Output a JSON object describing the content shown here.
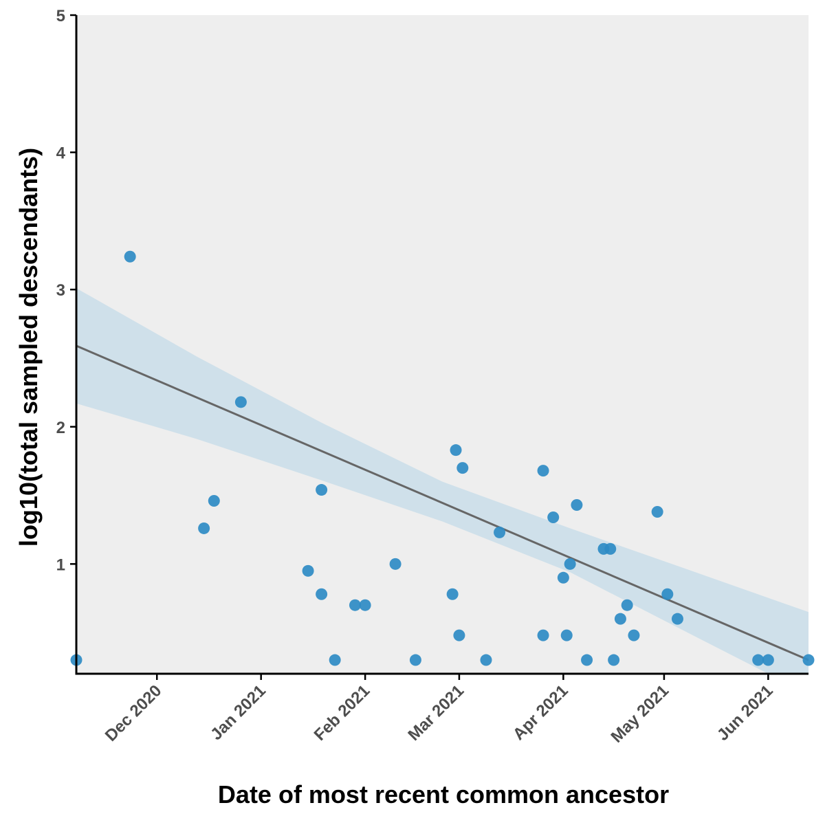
{
  "chart_data": {
    "type": "scatter",
    "title": "",
    "xlabel": "Date of most recent common ancestor",
    "ylabel": "log10(total sampled descendants)",
    "xlim": [
      "2020-11-07",
      "2021-06-13"
    ],
    "ylim": [
      0.2,
      5
    ],
    "x_ticks": [
      {
        "date": "2020-12-01",
        "label": "Dec 2020"
      },
      {
        "date": "2021-01-01",
        "label": "Jan 2021"
      },
      {
        "date": "2021-02-01",
        "label": "Feb 2021"
      },
      {
        "date": "2021-03-01",
        "label": "Mar 2021"
      },
      {
        "date": "2021-04-01",
        "label": "Apr 2021"
      },
      {
        "date": "2021-05-01",
        "label": "May 2021"
      },
      {
        "date": "2021-06-01",
        "label": "Jun 2021"
      }
    ],
    "y_ticks": [
      {
        "value": 1,
        "label": "1"
      },
      {
        "value": 2,
        "label": "2"
      },
      {
        "value": 3,
        "label": "3"
      },
      {
        "value": 4,
        "label": "4"
      },
      {
        "value": 5,
        "label": "5"
      }
    ],
    "grid": false,
    "colors": {
      "panel": "#eeeeee",
      "point": "#2e8bc4",
      "fit_line": "#666666",
      "band": "#cfe0ea",
      "axis": "#000000"
    },
    "points": [
      {
        "x": "2020-11-07",
        "y": 0.3
      },
      {
        "x": "2020-11-23",
        "y": 3.24
      },
      {
        "x": "2020-12-15",
        "y": 1.26
      },
      {
        "x": "2020-12-18",
        "y": 1.46
      },
      {
        "x": "2020-12-26",
        "y": 2.18
      },
      {
        "x": "2021-01-15",
        "y": 0.95
      },
      {
        "x": "2021-01-19",
        "y": 1.54
      },
      {
        "x": "2021-01-19",
        "y": 0.78
      },
      {
        "x": "2021-01-23",
        "y": 0.3
      },
      {
        "x": "2021-01-29",
        "y": 0.7
      },
      {
        "x": "2021-02-01",
        "y": 0.7
      },
      {
        "x": "2021-02-10",
        "y": 1.0
      },
      {
        "x": "2021-02-16",
        "y": 0.3
      },
      {
        "x": "2021-02-27",
        "y": 0.78
      },
      {
        "x": "2021-02-28",
        "y": 1.83
      },
      {
        "x": "2021-03-01",
        "y": 0.48
      },
      {
        "x": "2021-03-02",
        "y": 1.7
      },
      {
        "x": "2021-03-09",
        "y": 0.3
      },
      {
        "x": "2021-03-13",
        "y": 1.23
      },
      {
        "x": "2021-03-26",
        "y": 1.68
      },
      {
        "x": "2021-03-26",
        "y": 0.48
      },
      {
        "x": "2021-03-29",
        "y": 1.34
      },
      {
        "x": "2021-04-01",
        "y": 0.9
      },
      {
        "x": "2021-04-02",
        "y": 0.48
      },
      {
        "x": "2021-04-03",
        "y": 1.0
      },
      {
        "x": "2021-04-05",
        "y": 1.43
      },
      {
        "x": "2021-04-08",
        "y": 0.3
      },
      {
        "x": "2021-04-13",
        "y": 1.11
      },
      {
        "x": "2021-04-15",
        "y": 1.11
      },
      {
        "x": "2021-04-16",
        "y": 0.3
      },
      {
        "x": "2021-04-18",
        "y": 0.6
      },
      {
        "x": "2021-04-20",
        "y": 0.7
      },
      {
        "x": "2021-04-22",
        "y": 0.48
      },
      {
        "x": "2021-04-29",
        "y": 1.38
      },
      {
        "x": "2021-05-02",
        "y": 0.78
      },
      {
        "x": "2021-05-05",
        "y": 0.6
      },
      {
        "x": "2021-05-29",
        "y": 0.3
      },
      {
        "x": "2021-06-01",
        "y": 0.3
      },
      {
        "x": "2021-06-13",
        "y": 0.3
      }
    ],
    "fit": {
      "x": [
        "2020-11-07",
        "2021-06-13"
      ],
      "y": [
        2.59,
        0.3
      ]
    },
    "confidence_band": {
      "x": [
        "2020-11-07",
        "2020-12-13",
        "2021-01-19",
        "2021-02-24",
        "2021-04-03",
        "2021-05-08",
        "2021-06-13"
      ],
      "upper": [
        3.01,
        2.51,
        2.03,
        1.6,
        1.26,
        0.96,
        0.65
      ],
      "lower": [
        2.17,
        1.91,
        1.61,
        1.31,
        0.94,
        0.5,
        0.05
      ]
    }
  }
}
